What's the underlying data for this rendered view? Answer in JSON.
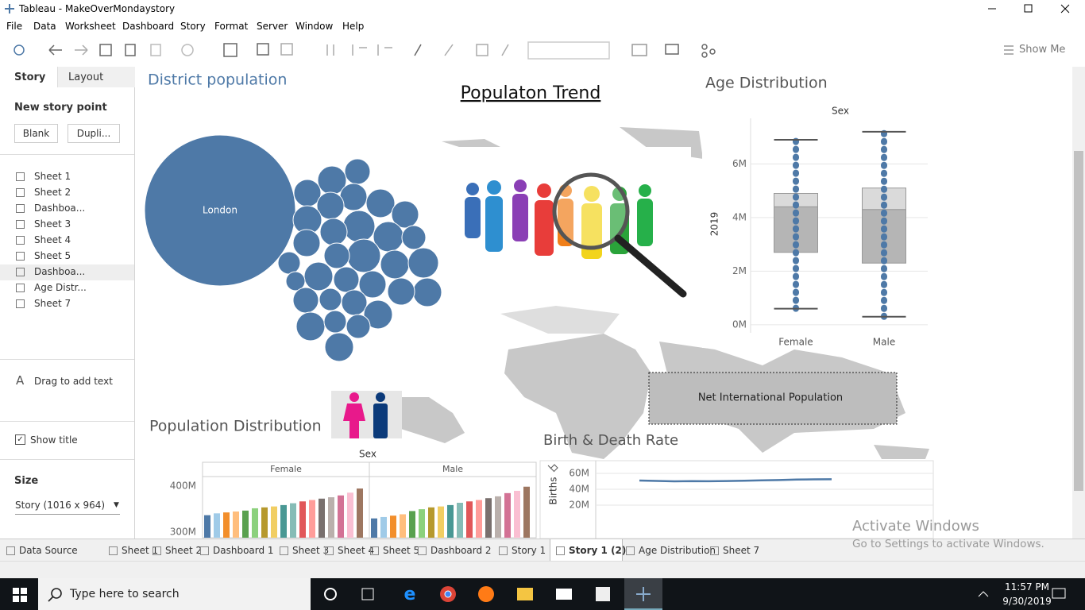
{
  "window": {
    "title": "Tableau - MakeOverMondaystory"
  },
  "menu": [
    "File",
    "Data",
    "Worksheet",
    "Dashboard",
    "Story",
    "Format",
    "Server",
    "Window",
    "Help"
  ],
  "toolbar": {
    "show_me": "Show Me"
  },
  "story_panel": {
    "tabs": [
      "Story",
      "Layout"
    ],
    "new_story_point": "New story point",
    "buttons": [
      "Blank",
      "Dupli..."
    ],
    "sheets": [
      "Sheet 1",
      "Sheet 2",
      "Dashboa...",
      "Sheet 3",
      "Sheet 4",
      "Sheet 5",
      "Dashboa...",
      "Age Distr...",
      "Sheet 7"
    ],
    "drag_text": "Drag to add text",
    "show_title": "Show title",
    "size_label": "Size",
    "size_value": "Story (1016 x 964)"
  },
  "dashboard": {
    "title": "Populaton Trend",
    "net_international": "Net International Population"
  },
  "chart_data": [
    {
      "type": "bubble",
      "title": "District population",
      "color": "#4e79a7",
      "categories": [
        "London",
        null,
        null,
        null,
        null,
        null,
        null,
        null,
        null,
        null,
        null,
        null,
        null,
        null,
        null,
        null,
        null,
        null,
        null,
        null,
        null,
        null,
        null,
        null,
        null,
        null,
        null,
        null,
        null,
        null,
        null,
        null,
        null
      ],
      "values": [
        8900000,
        253000,
        320000,
        286000,
        286000,
        320000,
        286000,
        286000,
        320000,
        395000,
        357000,
        222000,
        286000,
        286000,
        436000,
        253000,
        194000,
        320000,
        357000,
        320000,
        253000,
        286000,
        142000,
        320000,
        253000,
        194000,
        253000,
        286000,
        320000,
        320000,
        194000,
        222000,
        320000
      ]
    },
    {
      "type": "box",
      "title": "Age Distribution",
      "x_label": "Sex",
      "y_label": "2019",
      "categories": [
        "Female",
        "Male"
      ],
      "color": "#4e79a7",
      "min": [
        600000,
        300000
      ],
      "q1": [
        2700000,
        2300000
      ],
      "median": [
        4400000,
        4300000
      ],
      "q3": [
        4900000,
        5100000
      ],
      "max": [
        6900000,
        7200000
      ],
      "ylim": [
        -300000,
        7700000
      ],
      "yticks": [
        {
          "value": 0,
          "label": "0M"
        },
        {
          "value": 2000000,
          "label": "2M"
        },
        {
          "value": 4000000,
          "label": "4M"
        },
        {
          "value": 6000000,
          "label": "6M"
        }
      ],
      "grid": true
    },
    {
      "type": "bar",
      "title": "Population Distribution",
      "x_label": "Sex",
      "colors": [
        "#4e79a7",
        "#a0cbe8",
        "#f28e2b",
        "#ffbe7d",
        "#59a14f",
        "#8cd17d",
        "#b6992d",
        "#f1ce63",
        "#499894",
        "#86bcb6",
        "#e15759",
        "#ff9d9a",
        "#79706e",
        "#bab0ac",
        "#d37295",
        "#fabfd2",
        "#9d7660"
      ],
      "series": [
        {
          "name": "Female",
          "values": [
            337000000,
            341000000,
            343000000,
            345000000,
            347000000,
            352000000,
            354000000,
            356000000,
            359000000,
            363000000,
            367000000,
            370000000,
            373000000,
            376000000,
            380000000,
            386000000,
            395000000
          ]
        },
        {
          "name": "Male",
          "values": [
            330000000,
            333000000,
            336000000,
            339000000,
            346000000,
            350000000,
            354000000,
            356000000,
            359000000,
            364000000,
            367000000,
            370000000,
            374000000,
            378000000,
            385000000,
            390000000,
            399000000
          ]
        }
      ],
      "ylim": [
        288000000,
        421000000
      ],
      "yticks": [
        {
          "value": 300000000,
          "label": "300M"
        },
        {
          "value": 400000000,
          "label": "400M"
        }
      ]
    },
    {
      "type": "line",
      "title": "Birth & Death Rate",
      "y_label": "Births",
      "color": "#4e79a7",
      "values": [
        51000000,
        50500000,
        50000000,
        50300000,
        50100000,
        50400000,
        50800000,
        51200000,
        51600000,
        52200000,
        52500000,
        52600000
      ],
      "ylim": [
        -22000000,
        76000000
      ],
      "yticks": [
        {
          "value": 20000000,
          "label": "20M"
        },
        {
          "value": 40000000,
          "label": "40M"
        },
        {
          "value": 60000000,
          "label": "60M"
        }
      ],
      "grid": true
    }
  ],
  "sheet_tabs": [
    "Data Source",
    "Sheet 1",
    "Sheet 2",
    "Dashboard 1",
    "Sheet 3",
    "Sheet 4",
    "Sheet 5",
    "Dashboard 2",
    "Story 1",
    "Story 1 (2)",
    "Age Distribution",
    "Sheet 7"
  ],
  "watermark": {
    "title": "Activate Windows",
    "subtitle": "Go to Settings to activate Windows."
  },
  "taskbar": {
    "search": "Type here to search",
    "time": "11:57 PM",
    "date": "9/30/2019"
  }
}
